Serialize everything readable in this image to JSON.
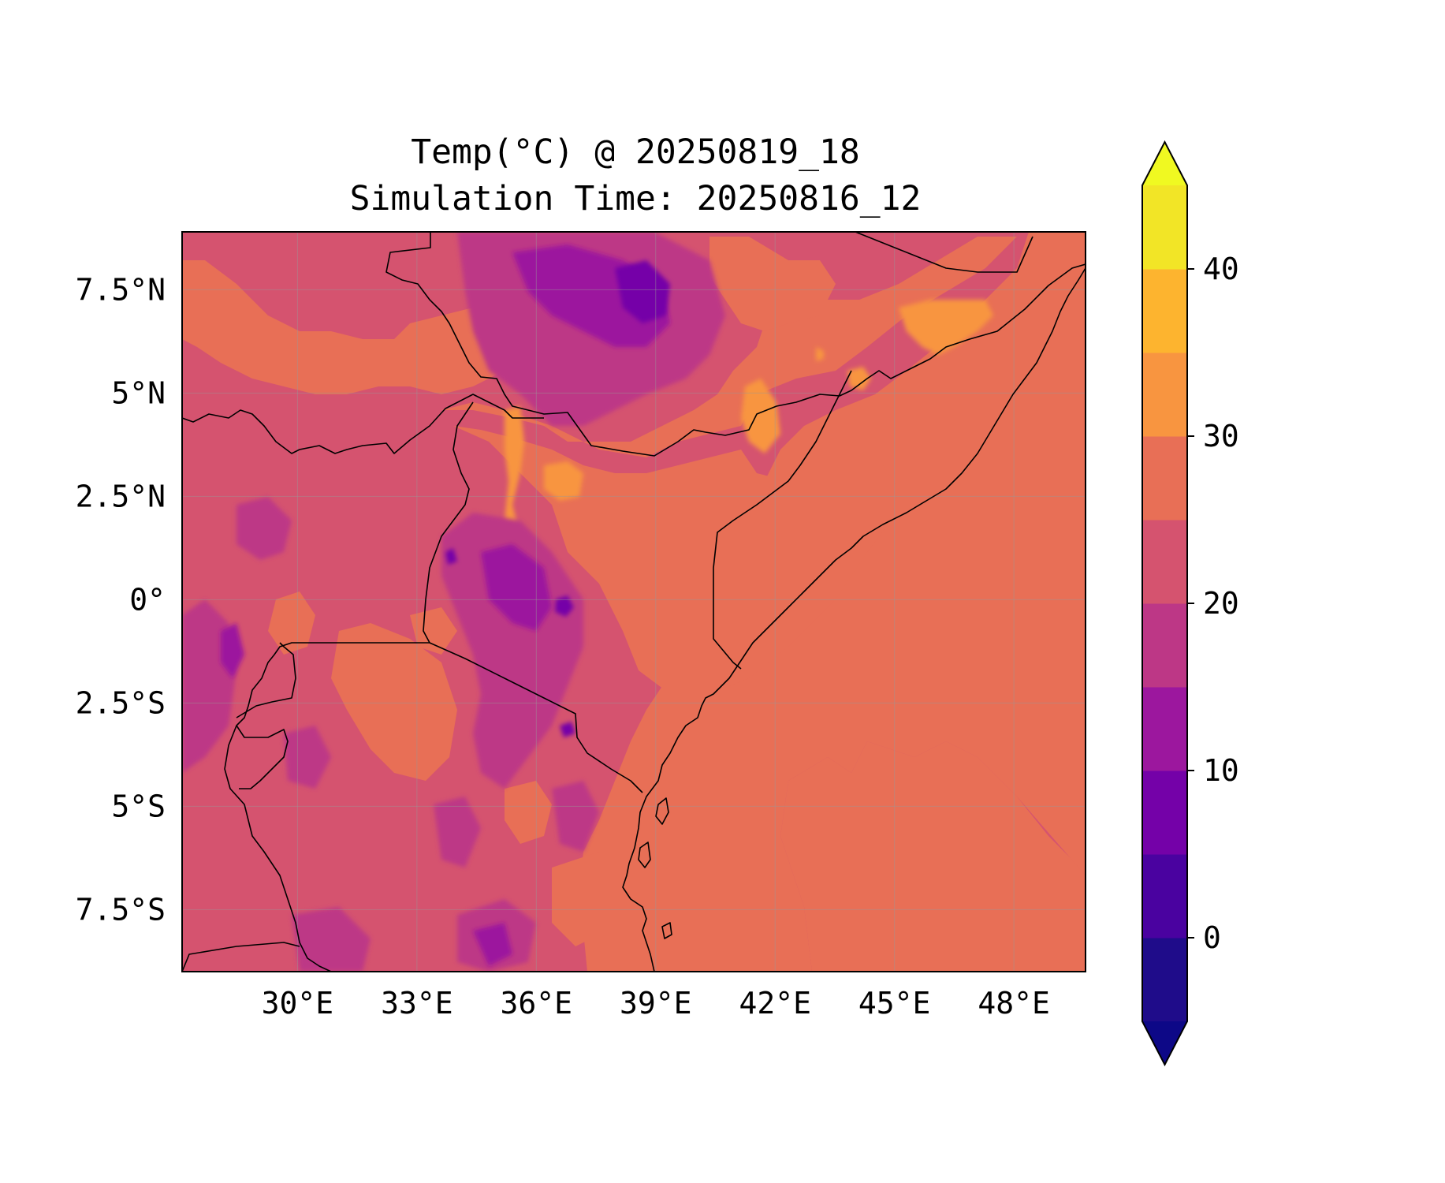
{
  "title_line1": "Temp(°C) @ 20250819_18",
  "title_line2": "Simulation Time: 20250816_12",
  "map": {
    "lon_range": [
      27.1,
      49.8
    ],
    "lat_range": [
      -9.0,
      8.9
    ],
    "x_ticks": [
      {
        "value": 30,
        "label": "30°E"
      },
      {
        "value": 33,
        "label": "33°E"
      },
      {
        "value": 36,
        "label": "36°E"
      },
      {
        "value": 39,
        "label": "39°E"
      },
      {
        "value": 42,
        "label": "42°E"
      },
      {
        "value": 45,
        "label": "45°E"
      },
      {
        "value": 48,
        "label": "48°E"
      }
    ],
    "y_ticks": [
      {
        "value": 7.5,
        "label": "7.5°N"
      },
      {
        "value": 5,
        "label": "5°N"
      },
      {
        "value": 2.5,
        "label": "2.5°N"
      },
      {
        "value": 0,
        "label": "0°"
      },
      {
        "value": -2.5,
        "label": "2.5°S"
      },
      {
        "value": -5,
        "label": "5°S"
      },
      {
        "value": -7.5,
        "label": "7.5°S"
      }
    ],
    "gridlines": true,
    "colormap": "plasma"
  },
  "colorbar": {
    "min": -5,
    "max": 45,
    "step": 5,
    "extend": "both",
    "ticks": [
      {
        "value": 0,
        "label": "0"
      },
      {
        "value": 10,
        "label": "10"
      },
      {
        "value": 20,
        "label": "20"
      },
      {
        "value": 30,
        "label": "30"
      },
      {
        "value": 40,
        "label": "40"
      }
    ],
    "levels": [
      {
        "from": -5,
        "to": 0,
        "color": "#1f0c8a"
      },
      {
        "from": 0,
        "to": 5,
        "color": "#4a02a0"
      },
      {
        "from": 5,
        "to": 10,
        "color": "#7401a8"
      },
      {
        "from": 10,
        "to": 15,
        "color": "#9c179e"
      },
      {
        "from": 15,
        "to": 20,
        "color": "#bd3786"
      },
      {
        "from": 20,
        "to": 25,
        "color": "#d5536f"
      },
      {
        "from": 25,
        "to": 30,
        "color": "#e86f56"
      },
      {
        "from": 30,
        "to": 35,
        "color": "#f89540"
      },
      {
        "from": 35,
        "to": 40,
        "color": "#fdb42f"
      },
      {
        "from": 40,
        "to": 45,
        "color": "#f2e526"
      }
    ],
    "under_color": "#0d0887",
    "over_color": "#f0f921"
  }
}
